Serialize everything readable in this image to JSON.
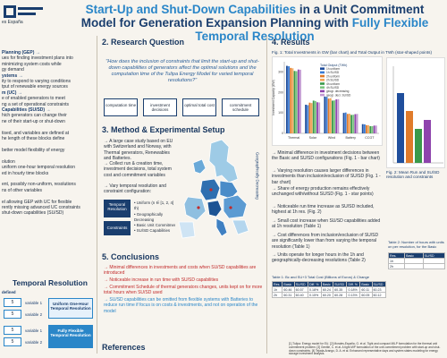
{
  "header": {
    "title_part1": "Start-Up and Shut-Down Capabilities",
    "title_part2": " in a Unit Commitment Model for Generation Expansion Planning with ",
    "title_part3": "Fully Flexible Temporal Resolution",
    "affiliation": "es España"
  },
  "left": {
    "lines": [
      "Planning (GEP) →",
      "ues for finding investment plans into",
      "minimizing system costs while",
      "gy demand",
      "ystems →",
      "ity to respond to varying conditions",
      "tput of renewable energy sources",
      "m (UC) →",
      "e of enabled generators to meet",
      "ng a set of operational constraints",
      "Capabilities (SU/SD) →",
      "hich generators can change their",
      "ne of their start-up or shut-down",
      "",
      "tised, and variables are defined at",
      "he length of these blocks define",
      "",
      "better model flexibility of energy",
      "",
      "olution",
      "uniform one-hour temporal resolution",
      "ed in hourly time blocks",
      "",
      "ent, possibly non-uniform, resolutions",
      "ns of other variables",
      "",
      "el allowing GEP with UC for flexible",
      "rently missing advanced UC constraints",
      "shut-down capabilities (SU/SD)"
    ],
    "tr_title": "Temporal Resolution",
    "tr_defined": "defined",
    "tr_rows": [
      {
        "value": "5",
        "var": "variable 1"
      },
      {
        "value": "5",
        "var": "variable 2"
      },
      {
        "value": "5",
        "var": "variable 1"
      },
      {
        "value": "5",
        "var": "variable 2"
      }
    ],
    "tr_uniform": "Uniform One-Hour Temporal Resolution",
    "tr_flexible": "Fully Flexible Temporal Resolution"
  },
  "research": {
    "heading": "2. Research Question",
    "question": "\"How does the inclusion of constraints that limit the start-up and shut-down capabilities of generators affect the optimal solutions and the computation time of the Tulipa Energy Model for varied temporal resolutions?\"",
    "boxes": [
      "computation time",
      "investment decisions",
      "optimal total cost",
      "commitment schedule"
    ]
  },
  "method": {
    "heading": "3. Method & Experimental Setup",
    "bullets": [
      "→ A large case study based on EU with Switzerland and Norway, with Thermal generators, Renewables and Batteries.",
      "→ Collect run & creation time, investment decisions, total system cost and commitment variables",
      "→ Vary temporal resolution and constraint configuration:"
    ],
    "temporal_label": "Temporal Resolution",
    "constraints_label": "Constraints",
    "temporal_opts": "• Uniform (n ∈ [1, 2, 4] th)\n• Geographically Decreasing",
    "constraint_opts": "• Basic Unit Commitment\n• SU/SD Capabilities",
    "map_note": "Geographically Decreasing"
  },
  "conclusions": {
    "heading": "5. Conclusions",
    "items": [
      "→ Minimal differences in investments and costs when SU/SD capabilities are introduced",
      "→ Noticeable increase in run time with SU/SD capabilities",
      "→ Commitment Schedule of thermal generators changes, units kept on for more total hours when SU/SD used",
      "→ SU/SD capabilities can be omitted from flexible systems with Batteries to reduce run time if focus is on costs & investments, and not on operation of the model"
    ]
  },
  "references": {
    "heading": "References",
    "text": "[1] Tulipa: Energy model for EU. [2] Morales-España, G. et al. Tight and compact MILP formulation for the thermal unit commitment problem. [3] Gentile, C. et al. A tight MIP formulation of the unit commitment problem with start-up and shut-down constraints. [4] Tejada-Arango, D. A. et al. Enhanced representative days and system states modeling for energy storage investment analysis."
  },
  "results": {
    "heading": "4. Results",
    "fig1_caption": "Fig. 1: Total Investments in GW (bar chart) and Total Output in TWh (star-shaped points)",
    "legend_title": "Total Output (TWh)",
    "legend_items": [
      "1h uniform",
      "1h SU/SD",
      "2h uniform",
      "2h SU/SD",
      "4h uniform",
      "4h SU/SD",
      "geogr. decreasing",
      "geogr. decr. SU/SD"
    ],
    "fig2_caption": "Fig. 2: Mean Run and SU/SD resolution and constraints",
    "bullets": [
      "→ Minimal difference in investment decisions between the Basic and SU/SD configurations (Fig. 1 - bar chart)",
      "→ Varying resolution causes larger differences in investments than inclusion/exclusion of SU/SD (Fig. 1 - bar chart)",
      "→ Share of energy production remains effectively unchanged with/without SU/SD (Fig. 1 - star points)",
      "→ Noticeable run time increase as SU/SD included, highest at 1h res. (Fig. 2)",
      "→ Small cost increase when SU/SD capabilities added at 1h resolution (Table 1)",
      "→ Cost differences from inclusion/exclusion of SU/SD are significantly lower than from varying the temporal resolution (Table 1)",
      "→ Units operate for longer hours in the 1h and geographically-decreasing resolutions (Table 2)"
    ],
    "table1_caption": "Table 1: Bc and SU+3 Total Cost (Billions of Euros) & Change",
    "table1_header": [
      "Res.",
      "Basic",
      "SU/SD",
      "Diff. %",
      "Basic",
      "SU/SD",
      "Diff. %",
      "Basic",
      "SU/SD"
    ],
    "table1_rows": [
      [
        "1h",
        "60.46",
        "60.57",
        "0.18%",
        "60.24",
        "60.35",
        "0.18%",
        "60.11",
        "60.23"
      ],
      [
        "2h",
        "60.31",
        "60.40",
        "0.15%",
        "60.20",
        "60.28",
        "0.13%",
        "60.05",
        "60.12"
      ]
    ],
    "table2_caption": "Table 2: Number of hours with units on per resolution, for the Basic",
    "table2_header": [
      "Res.",
      "Basic",
      "SU/SD"
    ],
    "table2_rows": [
      [
        "1h",
        "",
        ""
      ],
      [
        "2h",
        "",
        ""
      ]
    ]
  },
  "chart_data": {
    "type": "bar",
    "title": "Fig. 1: Total Investments in GW (bar chart) and Total Output in TWh (star-shaped points)",
    "ylabel": "Investment Capacity (GW)",
    "ylim": [
      0,
      350
    ],
    "categories": [
      "Thermal",
      "Solar",
      "Wind",
      "Battery",
      "CCGT"
    ],
    "series": [
      {
        "name": "1h uniform",
        "values": [
          330,
          140,
          180,
          100,
          45
        ]
      },
      {
        "name": "1h SU/SD",
        "values": [
          328,
          138,
          178,
          102,
          44
        ]
      },
      {
        "name": "2h uniform",
        "values": [
          320,
          150,
          170,
          95,
          40
        ]
      },
      {
        "name": "2h SU/SD",
        "values": [
          318,
          148,
          172,
          96,
          40
        ]
      },
      {
        "name": "4h uniform",
        "values": [
          305,
          160,
          160,
          90,
          35
        ]
      },
      {
        "name": "4h SU/SD",
        "values": [
          304,
          158,
          161,
          91,
          35
        ]
      },
      {
        "name": "geogr. decreasing",
        "values": [
          312,
          152,
          166,
          94,
          38
        ]
      },
      {
        "name": "geogr. decr. SU/SD",
        "values": [
          311,
          151,
          167,
          95,
          38
        ]
      }
    ],
    "colors": [
      "#1f4e9c",
      "#3a7bd5",
      "#e07b2a",
      "#f2a65a",
      "#3a9a4a",
      "#7bc47f",
      "#8e44ad",
      "#c39bd3"
    ]
  },
  "colors": {
    "primary": "#1a3e6e",
    "accent": "#2a86c8",
    "highlight": "#c22a2a",
    "bg": "#f7f4ee"
  }
}
